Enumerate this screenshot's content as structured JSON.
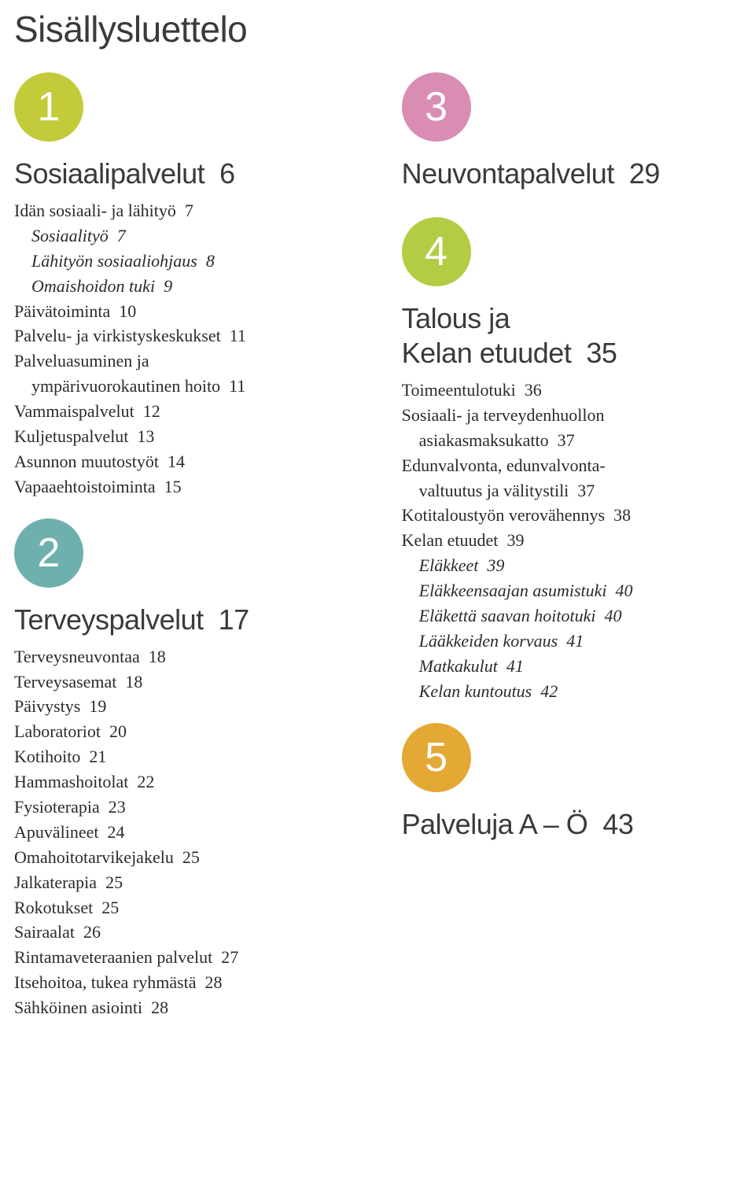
{
  "title": "Sisällysluettelo",
  "colors": {
    "circle1": "#c4cb3a",
    "circle2": "#6eb0ad",
    "circle3": "#d98db3",
    "circle4": "#b2cc44",
    "circle5": "#e4a935",
    "heading": "#3a3a3a",
    "body": "#2b2b2b"
  },
  "sections": {
    "s1": {
      "num": "1",
      "title": "Sosiaalipalvelut",
      "page": "6",
      "items": [
        {
          "t": "Idän sosiaali- ja lähityö",
          "p": "7",
          "lvl": 0
        },
        {
          "t": "Sosiaalityö",
          "p": "7",
          "lvl": 1,
          "it": true
        },
        {
          "t": "Lähityön sosiaaliohjaus",
          "p": "8",
          "lvl": 1,
          "it": true
        },
        {
          "t": "Omaishoidon tuki",
          "p": "9",
          "lvl": 1,
          "it": true
        },
        {
          "t": "Päivätoiminta",
          "p": "10",
          "lvl": 0
        },
        {
          "t": "Palvelu- ja virkistyskeskukset",
          "p": "11",
          "lvl": 0
        },
        {
          "t": "Palveluasuminen ja",
          "p": "",
          "lvl": 0
        },
        {
          "t": "ympärivuorokautinen hoito",
          "p": "11",
          "lvl": 1
        },
        {
          "t": "Vammaispalvelut",
          "p": "12",
          "lvl": 0
        },
        {
          "t": "Kuljetuspalvelut",
          "p": "13",
          "lvl": 0
        },
        {
          "t": "Asunnon muutostyöt",
          "p": "14",
          "lvl": 0
        },
        {
          "t": "Vapaaehtoistoiminta",
          "p": "15",
          "lvl": 0
        }
      ]
    },
    "s2": {
      "num": "2",
      "title": "Terveyspalvelut",
      "page": "17",
      "items": [
        {
          "t": "Terveysneuvontaa",
          "p": "18",
          "lvl": 0
        },
        {
          "t": "Terveysasemat",
          "p": "18",
          "lvl": 0
        },
        {
          "t": "Päivystys",
          "p": "19",
          "lvl": 0
        },
        {
          "t": "Laboratoriot",
          "p": "20",
          "lvl": 0
        },
        {
          "t": "Kotihoito",
          "p": "21",
          "lvl": 0
        },
        {
          "t": "Hammashoitolat",
          "p": "22",
          "lvl": 0
        },
        {
          "t": "Fysioterapia",
          "p": "23",
          "lvl": 0
        },
        {
          "t": "Apuvälineet",
          "p": "24",
          "lvl": 0
        },
        {
          "t": "Omahoitotarvikejakelu",
          "p": "25",
          "lvl": 0
        },
        {
          "t": "Jalkaterapia",
          "p": "25",
          "lvl": 0
        },
        {
          "t": "Rokotukset",
          "p": "25",
          "lvl": 0
        },
        {
          "t": "Sairaalat",
          "p": "26",
          "lvl": 0
        },
        {
          "t": "Rintamaveteraanien palvelut",
          "p": "27",
          "lvl": 0
        },
        {
          "t": "Itsehoitoa, tukea ryhmästä",
          "p": "28",
          "lvl": 0
        },
        {
          "t": "Sähköinen asiointi",
          "p": "28",
          "lvl": 0
        }
      ]
    },
    "s3": {
      "num": "3",
      "title": "Neuvontapalvelut",
      "page": "29"
    },
    "s4": {
      "num": "4",
      "title_l1": "Talous ja",
      "title_l2": "Kelan etuudet",
      "page": "35",
      "items": [
        {
          "t": "Toimeentulotuki",
          "p": "36",
          "lvl": 0
        },
        {
          "t": "Sosiaali- ja terveydenhuollon",
          "p": "",
          "lvl": 0
        },
        {
          "t": "asiakasmaksukatto",
          "p": "37",
          "lvl": 1
        },
        {
          "t": "Edunvalvonta, edunvalvonta-",
          "p": "",
          "lvl": 0
        },
        {
          "t": "valtuutus ja välitystili",
          "p": "37",
          "lvl": 1
        },
        {
          "t": "Kotitaloustyön verovähennys",
          "p": "38",
          "lvl": 0
        },
        {
          "t": "Kelan etuudet",
          "p": "39",
          "lvl": 0
        },
        {
          "t": "Eläkkeet",
          "p": "39",
          "lvl": 1,
          "it": true
        },
        {
          "t": "Eläkkeensaajan asumistuki",
          "p": "40",
          "lvl": 1,
          "it": true
        },
        {
          "t": "Eläkettä saavan hoitotuki",
          "p": "40",
          "lvl": 1,
          "it": true
        },
        {
          "t": "Lääkkeiden korvaus",
          "p": "41",
          "lvl": 1,
          "it": true
        },
        {
          "t": "Matkakulut",
          "p": "41",
          "lvl": 1,
          "it": true
        },
        {
          "t": "Kelan kuntoutus",
          "p": "42",
          "lvl": 1,
          "it": true
        }
      ]
    },
    "s5": {
      "num": "5",
      "title": "Palveluja A – Ö",
      "page": "43"
    }
  }
}
